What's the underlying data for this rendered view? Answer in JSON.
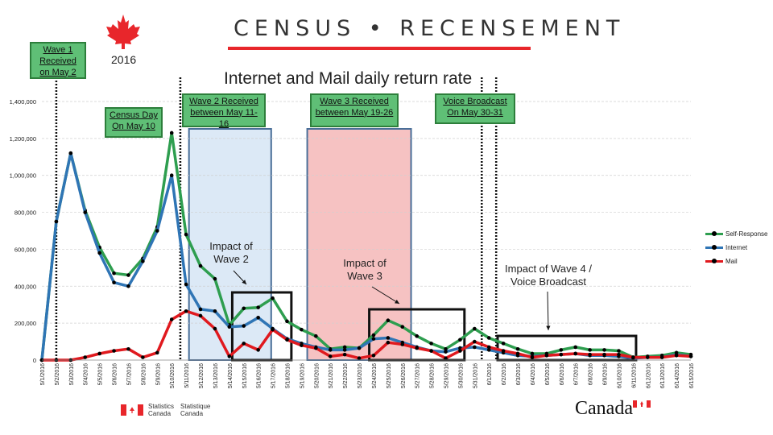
{
  "header": {
    "census_title": "CENSUS • RECENSEMENT",
    "year": "2016",
    "chart_title": "Internet and Mail daily return rate"
  },
  "callouts": {
    "wave1": "Wave 1 Received on May 2",
    "census_day": "Census Day On May 10",
    "wave2": "Wave 2 Received between May 11-16",
    "wave3": "Wave 3 Received between May 19-26",
    "voice": "Voice Broadcast On May 30-31"
  },
  "impacts": {
    "wave2": "Impact of Wave 2",
    "wave3": "Impact of Wave 3",
    "wave4": "Impact of Wave 4 / Voice Broadcast"
  },
  "footer": {
    "statcan_en_1": "Statistics",
    "statcan_en_2": "Canada",
    "statcan_fr_1": "Statistique",
    "statcan_fr_2": "Canada",
    "wordmark": "Canada"
  },
  "colors": {
    "self_response": "#2e9e4f",
    "internet": "#2f75b5",
    "mail": "#e0191e",
    "wave2_band": "#dce9f6",
    "wave3_band": "#f6c2c2",
    "red": "#e8262b"
  },
  "chart_data": {
    "type": "line",
    "title": "Internet and Mail daily return rate",
    "ylim": [
      0,
      1400000
    ],
    "yticks": [
      0,
      200000,
      400000,
      600000,
      800000,
      1000000,
      1200000,
      1400000
    ],
    "ytick_labels": [
      "0",
      "200,000",
      "400,000",
      "600,000",
      "800,000",
      "1,000,000",
      "1,200,000",
      "1,400,000"
    ],
    "grid": true,
    "legend_position": "right",
    "x": [
      "5/1/2016",
      "5/2/2016",
      "5/3/2016",
      "5/4/2016",
      "5/5/2016",
      "5/6/2016",
      "5/7/2016",
      "5/8/2016",
      "5/9/2016",
      "5/10/2016",
      "5/11/2016",
      "5/12/2016",
      "5/13/2016",
      "5/14/2016",
      "5/15/2016",
      "5/16/2016",
      "5/17/2016",
      "5/18/2016",
      "5/19/2016",
      "5/20/2016",
      "5/21/2016",
      "5/22/2016",
      "5/23/2016",
      "5/24/2016",
      "5/25/2016",
      "5/26/2016",
      "5/27/2016",
      "5/28/2016",
      "5/29/2016",
      "5/30/2016",
      "5/31/2016",
      "6/1/2016",
      "6/2/2016",
      "6/3/2016",
      "6/4/2016",
      "6/5/2016",
      "6/6/2016",
      "6/7/2016",
      "6/8/2016",
      "6/9/2016",
      "6/10/2016",
      "6/11/2016",
      "6/12/2016",
      "6/13/2016",
      "6/14/2016",
      "6/15/2016"
    ],
    "series": [
      {
        "name": "Self-Response",
        "color": "#2e9e4f",
        "values": [
          0,
          750000,
          1120000,
          810000,
          610000,
          470000,
          460000,
          550000,
          720000,
          1230000,
          680000,
          510000,
          440000,
          190000,
          280000,
          285000,
          335000,
          210000,
          165000,
          130000,
          60000,
          70000,
          65000,
          135000,
          215000,
          180000,
          130000,
          90000,
          60000,
          110000,
          170000,
          120000,
          90000,
          60000,
          35000,
          35000,
          55000,
          70000,
          55000,
          55000,
          50000,
          15000,
          20000,
          25000,
          40000,
          30000
        ]
      },
      {
        "name": "Internet",
        "color": "#2f75b5",
        "values": [
          0,
          750000,
          1120000,
          800000,
          580000,
          420000,
          400000,
          535000,
          700000,
          1000000,
          410000,
          275000,
          265000,
          180000,
          185000,
          230000,
          170000,
          115000,
          90000,
          70000,
          55000,
          55000,
          65000,
          115000,
          120000,
          95000,
          70000,
          50000,
          45000,
          65000,
          70000,
          55000,
          40000,
          25000,
          20000,
          25000,
          30000,
          35000,
          25000,
          25000,
          20000,
          10000,
          15000,
          15000,
          30000,
          20000
        ]
      },
      {
        "name": "Mail",
        "color": "#e0191e",
        "values": [
          0,
          0,
          0,
          15000,
          35000,
          50000,
          60000,
          15000,
          40000,
          220000,
          265000,
          240000,
          170000,
          20000,
          90000,
          55000,
          165000,
          110000,
          80000,
          65000,
          20000,
          30000,
          10000,
          25000,
          95000,
          85000,
          65000,
          50000,
          10000,
          50000,
          100000,
          70000,
          50000,
          35000,
          15000,
          25000,
          30000,
          35000,
          30000,
          30000,
          30000,
          15000,
          15000,
          15000,
          25000,
          20000
        ]
      }
    ]
  }
}
